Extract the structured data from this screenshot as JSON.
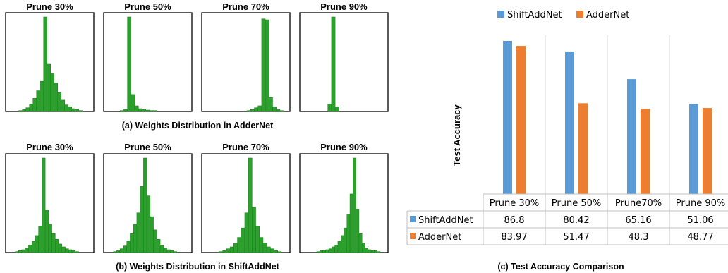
{
  "chart_data": [
    {
      "type": "bar",
      "panel": "a",
      "caption": "(a) Weights Distribution in AdderNet",
      "color": "#2ca02c",
      "subplots": [
        {
          "title": "Prune 30%",
          "values": [
            0.01,
            0.02,
            0.04,
            0.08,
            0.14,
            0.22,
            0.32,
            1.0,
            0.5,
            0.4,
            0.3,
            0.2,
            0.12,
            0.07,
            0.05,
            0.03,
            0.02,
            0.01
          ]
        },
        {
          "title": "Prune 50%",
          "values": [
            0.01,
            0.02,
            1.0,
            0.18,
            0.06,
            0.03,
            0.02,
            0.015,
            0.01,
            0.01
          ]
        },
        {
          "title": "Prune 70%",
          "values": [
            0.01,
            0.02,
            0.04,
            0.06,
            0.98,
            0.97,
            0.15,
            0.05,
            0.02,
            0.01
          ]
        },
        {
          "title": "Prune 90%",
          "values": [
            0.08,
            1.0,
            0.05
          ]
        }
      ]
    },
    {
      "type": "bar",
      "panel": "b",
      "caption": "(b) Weights Distribution in ShiftAddNet",
      "color": "#2ca02c",
      "subplots": [
        {
          "title": "Prune 30%",
          "values": [
            0.01,
            0.02,
            0.03,
            0.05,
            0.08,
            0.12,
            0.18,
            0.28,
            1.0,
            0.45,
            0.3,
            0.2,
            0.14,
            0.09,
            0.06,
            0.04,
            0.03,
            0.02,
            0.01
          ]
        },
        {
          "title": "Prune 50%",
          "values": [
            0.01,
            0.02,
            0.04,
            0.07,
            0.12,
            0.2,
            0.3,
            0.42,
            0.7,
            1.0,
            0.6,
            0.38,
            0.24,
            0.14,
            0.08,
            0.05,
            0.03,
            0.02,
            0.01
          ]
        },
        {
          "title": "Prune 70%",
          "values": [
            0.01,
            0.02,
            0.04,
            0.06,
            0.1,
            0.16,
            0.26,
            0.42,
            1.0,
            0.48,
            0.28,
            0.16,
            0.1,
            0.06,
            0.04,
            0.02,
            0.01
          ]
        },
        {
          "title": "Prune 90%",
          "values": [
            0.01,
            0.02,
            0.02,
            0.03,
            0.04,
            0.06,
            0.08,
            0.12,
            0.18,
            0.26,
            0.4,
            0.62,
            1.0,
            0.46,
            0.2,
            0.1,
            0.05,
            0.03,
            0.02,
            0.02,
            0.01
          ]
        }
      ]
    },
    {
      "type": "bar",
      "panel": "c",
      "caption": "(c) Test Accuracy Comparison",
      "ylabel": "Test Accuracy",
      "categories": [
        "Prune 30%",
        "Prune 50%",
        "Prune70%",
        "Prune 90%"
      ],
      "series": [
        {
          "name": "ShiftAddNet",
          "color": "#5b9bd5",
          "values": [
            86.8,
            80.42,
            65.16,
            51.06
          ]
        },
        {
          "name": "AdderNet",
          "color": "#ed7d31",
          "values": [
            83.97,
            51.47,
            48.3,
            48.77
          ]
        }
      ],
      "ylim": [
        0,
        90
      ],
      "legend": "top",
      "data_table": true
    }
  ]
}
